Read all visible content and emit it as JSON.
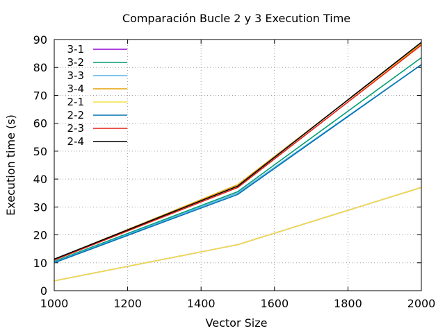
{
  "chart_data": {
    "type": "line",
    "title": "Comparación Bucle 2 y 3 Execution Time",
    "xlabel": "Vector Size",
    "ylabel": "Execution time (s)",
    "xlim": [
      1000,
      2000
    ],
    "ylim": [
      0,
      90
    ],
    "xticks": [
      1000,
      1200,
      1400,
      1600,
      1800,
      2000
    ],
    "yticks": [
      0,
      10,
      20,
      30,
      40,
      50,
      60,
      70,
      80,
      90
    ],
    "grid": true,
    "legend_position": "top-left",
    "x": [
      1000,
      1500,
      2000
    ],
    "series": [
      {
        "name": "3-1",
        "color": "#9400d3",
        "values": [
          3.5,
          16.5,
          37.0
        ]
      },
      {
        "name": "3-2",
        "color": "#009e73",
        "values": [
          10.5,
          35.5,
          83.5
        ]
      },
      {
        "name": "3-3",
        "color": "#56b4e9",
        "values": [
          10.2,
          35.0,
          81.0
        ]
      },
      {
        "name": "3-4",
        "color": "#e69f00",
        "values": [
          11.2,
          38.0,
          88.5
        ]
      },
      {
        "name": "2-1",
        "color": "#f0e442",
        "values": [
          3.5,
          16.5,
          37.0
        ]
      },
      {
        "name": "2-2",
        "color": "#0072b2",
        "values": [
          10.0,
          34.5,
          81.0
        ]
      },
      {
        "name": "2-3",
        "color": "#e51e10",
        "values": [
          11.0,
          37.0,
          88.0
        ]
      },
      {
        "name": "2-4",
        "color": "#000000",
        "values": [
          11.3,
          37.5,
          89.0
        ]
      }
    ]
  }
}
